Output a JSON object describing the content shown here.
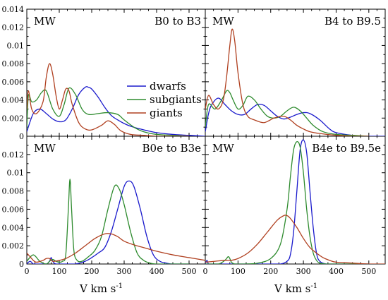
{
  "chart_data": {
    "type": "line",
    "layout": "2x2 grid, shared axes",
    "legend": {
      "placement": "top-left of upper-right panel",
      "entries": [
        {
          "name": "dwarfs",
          "color": "#1a1acc"
        },
        {
          "name": "subgiants",
          "color": "#2e8b2e"
        },
        {
          "name": "giants",
          "color": "#b04020"
        }
      ]
    },
    "xlim": [
      0,
      550
    ],
    "ylim": [
      0,
      0.014
    ],
    "xticks": [
      "0",
      "100",
      "200",
      "300",
      "400",
      "500"
    ],
    "yticks": [
      "0",
      "0.002",
      "0.004",
      "0.006",
      "0.008",
      "0.01",
      "0.012",
      "0.014"
    ],
    "xlabel_main": "V  km s",
    "xlabel_exp": "-1",
    "panels": [
      {
        "id": "b0-b3",
        "corner_label": "MW",
        "title": "B0 to B3",
        "series": [
          {
            "name": "dwarfs",
            "color": "#1a1acc",
            "x": [
              0,
              20,
              40,
              60,
              80,
              100,
              120,
              140,
              160,
              180,
              190,
              200,
              220,
              240,
              260,
              280,
              300,
              320,
              350,
              400,
              450,
              500,
              550
            ],
            "y": [
              0.0005,
              0.0025,
              0.003,
              0.0025,
              0.0019,
              0.0016,
              0.0018,
              0.003,
              0.0046,
              0.0054,
              0.0054,
              0.0052,
              0.0043,
              0.0032,
              0.0023,
              0.0018,
              0.0014,
              0.0011,
              0.0008,
              0.0004,
              0.0002,
              0.0001,
              0.0
            ]
          },
          {
            "name": "subgiants",
            "color": "#2e8b2e",
            "x": [
              0,
              5,
              15,
              30,
              45,
              60,
              80,
              100,
              115,
              130,
              150,
              170,
              190,
              220,
              250,
              280,
              300,
              330,
              360,
              400,
              450,
              500
            ],
            "y": [
              0.0008,
              0.0045,
              0.0038,
              0.004,
              0.0048,
              0.005,
              0.003,
              0.0022,
              0.0035,
              0.0053,
              0.0046,
              0.003,
              0.0024,
              0.0025,
              0.0026,
              0.0024,
              0.0018,
              0.001,
              0.0005,
              0.0002,
              0.0001,
              0.0
            ]
          },
          {
            "name": "giants",
            "color": "#b04020",
            "x": [
              0,
              5,
              15,
              30,
              50,
              60,
              70,
              80,
              90,
              100,
              110,
              120,
              130,
              140,
              160,
              180,
              200,
              230,
              250,
              270,
              290,
              320,
              360,
              400,
              450,
              500
            ],
            "y": [
              0.003,
              0.005,
              0.003,
              0.0025,
              0.0038,
              0.0065,
              0.008,
              0.0068,
              0.0045,
              0.003,
              0.004,
              0.0052,
              0.005,
              0.0035,
              0.0015,
              0.0008,
              0.0007,
              0.0012,
              0.0017,
              0.0013,
              0.0006,
              0.0002,
              0.0001,
              0.0,
              0.0,
              0.0
            ]
          }
        ]
      },
      {
        "id": "b4-b9.5",
        "corner_label": "MW",
        "title": "B4 to B9.5",
        "series": [
          {
            "name": "dwarfs",
            "color": "#1a1acc",
            "x": [
              0,
              10,
              20,
              40,
              60,
              80,
              100,
              120,
              140,
              160,
              180,
              200,
              220,
              240,
              260,
              280,
              300,
              320,
              350,
              380,
              400,
              450,
              500,
              550
            ],
            "y": [
              0.0005,
              0.0025,
              0.0035,
              0.0042,
              0.0035,
              0.0028,
              0.0024,
              0.0024,
              0.003,
              0.0035,
              0.0034,
              0.0028,
              0.0022,
              0.0019,
              0.0021,
              0.0024,
              0.0026,
              0.0025,
              0.0018,
              0.0008,
              0.0004,
              0.0001,
              0.0,
              0.0
            ]
          },
          {
            "name": "subgiants",
            "color": "#2e8b2e",
            "x": [
              0,
              10,
              30,
              50,
              65,
              75,
              85,
              100,
              115,
              130,
              150,
              170,
              190,
              210,
              230,
              250,
              270,
              290,
              310,
              330,
              360,
              400,
              450,
              500
            ],
            "y": [
              0.001,
              0.0035,
              0.003,
              0.004,
              0.005,
              0.0048,
              0.004,
              0.003,
              0.0034,
              0.0044,
              0.004,
              0.003,
              0.0022,
              0.002,
              0.0022,
              0.0028,
              0.0032,
              0.0028,
              0.002,
              0.0012,
              0.0005,
              0.0002,
              0.0001,
              0.0
            ]
          },
          {
            "name": "giants",
            "color": "#b04020",
            "x": [
              0,
              10,
              25,
              40,
              55,
              65,
              75,
              82,
              90,
              100,
              115,
              130,
              150,
              180,
              210,
              240,
              260,
              280,
              300,
              320,
              350,
              400,
              450,
              500
            ],
            "y": [
              0.003,
              0.0045,
              0.0035,
              0.003,
              0.004,
              0.0065,
              0.01,
              0.0118,
              0.0105,
              0.007,
              0.0035,
              0.0022,
              0.0018,
              0.0015,
              0.002,
              0.0022,
              0.0018,
              0.0012,
              0.0008,
              0.0005,
              0.0003,
              0.0001,
              0.0,
              0.0
            ]
          }
        ]
      },
      {
        "id": "b0e-b3e",
        "corner_label": "MW",
        "title": "B0e to B3e",
        "series": [
          {
            "name": "dwarfs",
            "color": "#1a1acc",
            "x": [
              0,
              10,
              20,
              30,
              40,
              60,
              70,
              75,
              80,
              90,
              120,
              150,
              180,
              200,
              220,
              240,
              260,
              280,
              300,
              315,
              330,
              350,
              370,
              390,
              410,
              430,
              450,
              500
            ],
            "y": [
              0.0,
              0.0003,
              0.0,
              0.0,
              0.0,
              0.0,
              0.0003,
              0.0007,
              0.0003,
              0.0,
              0.0,
              0.0,
              0.0003,
              0.0007,
              0.0012,
              0.0018,
              0.0035,
              0.006,
              0.0085,
              0.0091,
              0.0085,
              0.006,
              0.003,
              0.001,
              0.0003,
              0.0001,
              0.0,
              0.0
            ]
          },
          {
            "name": "subgiants",
            "color": "#2e8b2e",
            "x": [
              0,
              20,
              40,
              60,
              70,
              80,
              90,
              100,
              110,
              120,
              128,
              133,
              138,
              145,
              155,
              170,
              190,
              210,
              230,
              250,
              270,
              285,
              300,
              320,
              340,
              360,
              380,
              400,
              450,
              500
            ],
            "y": [
              0.0003,
              0.001,
              0.0003,
              0.0,
              0.0003,
              0.0005,
              0.0003,
              0.0002,
              0.0003,
              0.001,
              0.006,
              0.0093,
              0.006,
              0.0015,
              0.0004,
              0.0003,
              0.0008,
              0.0015,
              0.003,
              0.006,
              0.0085,
              0.0082,
              0.0065,
              0.0035,
              0.0012,
              0.0004,
              0.0001,
              0.0,
              0.0,
              0.0
            ]
          },
          {
            "name": "giants",
            "color": "#b04020",
            "x": [
              0,
              10,
              20,
              30,
              50,
              60,
              70,
              80,
              100,
              120,
              150,
              180,
              210,
              240,
              260,
              280,
              300,
              330,
              360,
              400,
              450,
              500,
              550
            ],
            "y": [
              0.0012,
              0.0008,
              0.0004,
              0.0002,
              0.0004,
              0.0006,
              0.0006,
              0.0003,
              0.0004,
              0.0006,
              0.0012,
              0.002,
              0.0028,
              0.0033,
              0.0033,
              0.003,
              0.0025,
              0.0021,
              0.0018,
              0.0014,
              0.001,
              0.0007,
              0.0004
            ]
          }
        ]
      },
      {
        "id": "b4e-b9.5e",
        "corner_label": "MW",
        "title": "B4e to B9.5e",
        "series": [
          {
            "name": "dwarfs",
            "color": "#1a1acc",
            "x": [
              0,
              5,
              10,
              20,
              200,
              230,
              250,
              260,
              270,
              280,
              290,
              300,
              310,
              320,
              330,
              340,
              350,
              370,
              400,
              450,
              500
            ],
            "y": [
              0.0,
              0.0004,
              0.0,
              0.0,
              0.0,
              0.0,
              0.0003,
              0.001,
              0.0035,
              0.008,
              0.0125,
              0.0136,
              0.0122,
              0.008,
              0.004,
              0.0012,
              0.0003,
              0.0,
              0.0,
              0.0,
              0.0
            ]
          },
          {
            "name": "subgiants",
            "color": "#2e8b2e",
            "x": [
              0,
              40,
              60,
              70,
              75,
              80,
              90,
              120,
              160,
              200,
              230,
              250,
              260,
              270,
              280,
              290,
              300,
              310,
              320,
              330,
              340,
              350,
              370,
              400,
              450,
              500
            ],
            "y": [
              0.0,
              0.0,
              0.0004,
              0.0008,
              0.0006,
              0.0002,
              0.0,
              0.0,
              0.0001,
              0.0006,
              0.0022,
              0.006,
              0.0095,
              0.0125,
              0.0134,
              0.0128,
              0.01,
              0.006,
              0.003,
              0.0012,
              0.0004,
              0.0001,
              0.0,
              0.0,
              0.0,
              0.0
            ]
          },
          {
            "name": "giants",
            "color": "#b04020",
            "x": [
              0,
              30,
              60,
              80,
              100,
              130,
              160,
              190,
              220,
              240,
              250,
              260,
              280,
              300,
              320,
              340,
              360,
              380,
              400,
              450,
              500,
              550
            ],
            "y": [
              0.0002,
              0.0003,
              0.0004,
              0.0004,
              0.0006,
              0.0012,
              0.0022,
              0.0035,
              0.0048,
              0.0053,
              0.0053,
              0.005,
              0.004,
              0.0028,
              0.0018,
              0.0012,
              0.0007,
              0.0004,
              0.0002,
              0.0001,
              0.0,
              0.0
            ]
          }
        ]
      }
    ]
  }
}
